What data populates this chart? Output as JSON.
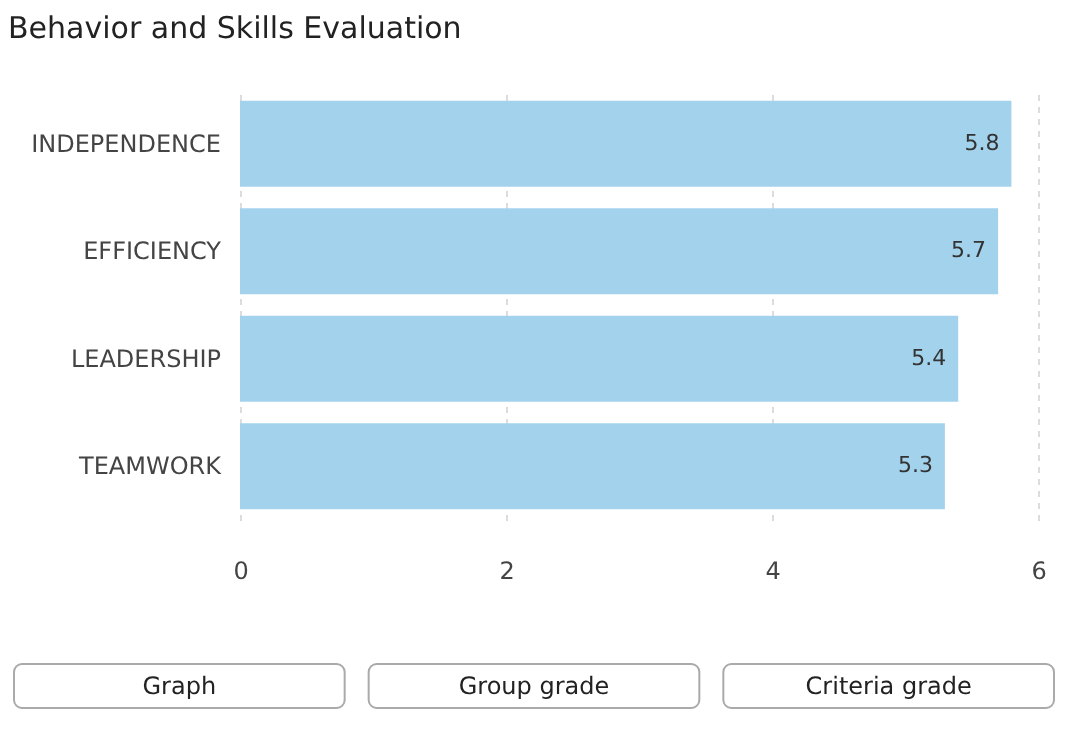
{
  "chart_data": {
    "type": "bar",
    "orientation": "horizontal",
    "title": "Behavior and Skills Evaluation",
    "categories": [
      "INDEPENDENCE",
      "EFFICIENCY",
      "LEADERSHIP",
      "TEAMWORK"
    ],
    "values": [
      5.8,
      5.7,
      5.4,
      5.3
    ],
    "color": "#a3d3ec",
    "xlim": [
      0,
      6
    ],
    "xticks": [
      0,
      2,
      4,
      6
    ],
    "grid": "x",
    "data_labels": true,
    "annotations": [
      "Graph",
      "Group grade",
      "Criteria grade"
    ]
  }
}
